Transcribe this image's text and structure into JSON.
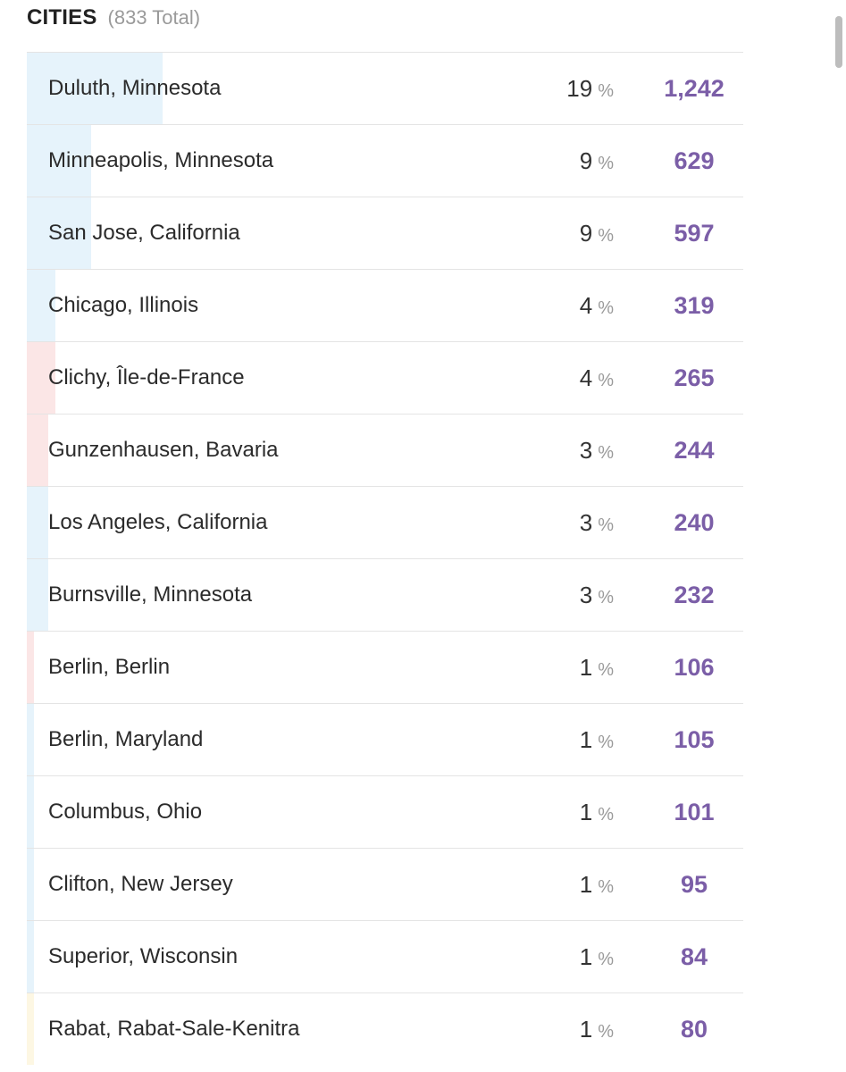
{
  "header": {
    "title": "CITIES",
    "total": "(833 Total)"
  },
  "colors": {
    "count_text": "#7b5ea7",
    "bar_blue": "#e6f3fb",
    "bar_red": "#fbe6e6",
    "bar_yellow": "#fdf7e3"
  },
  "rows": [
    {
      "city": "Duluth, Minnesota",
      "pct": "19",
      "pct_sign": "%",
      "count": "1,242",
      "share": 0.19,
      "bar_color": "#e6f3fb"
    },
    {
      "city": "Minneapolis, Minnesota",
      "pct": "9",
      "pct_sign": "%",
      "count": "629",
      "share": 0.09,
      "bar_color": "#e6f3fb"
    },
    {
      "city": "San Jose, California",
      "pct": "9",
      "pct_sign": "%",
      "count": "597",
      "share": 0.09,
      "bar_color": "#e6f3fb"
    },
    {
      "city": "Chicago, Illinois",
      "pct": "4",
      "pct_sign": "%",
      "count": "319",
      "share": 0.04,
      "bar_color": "#e6f3fb"
    },
    {
      "city": "Clichy, Île-de-France",
      "pct": "4",
      "pct_sign": "%",
      "count": "265",
      "share": 0.04,
      "bar_color": "#fbe6e6"
    },
    {
      "city": "Gunzenhausen, Bavaria",
      "pct": "3",
      "pct_sign": "%",
      "count": "244",
      "share": 0.03,
      "bar_color": "#fbe6e6"
    },
    {
      "city": "Los Angeles, California",
      "pct": "3",
      "pct_sign": "%",
      "count": "240",
      "share": 0.03,
      "bar_color": "#e6f3fb"
    },
    {
      "city": "Burnsville, Minnesota",
      "pct": "3",
      "pct_sign": "%",
      "count": "232",
      "share": 0.03,
      "bar_color": "#e6f3fb"
    },
    {
      "city": "Berlin, Berlin",
      "pct": "1",
      "pct_sign": "%",
      "count": "106",
      "share": 0.01,
      "bar_color": "#fbe6e6"
    },
    {
      "city": "Berlin, Maryland",
      "pct": "1",
      "pct_sign": "%",
      "count": "105",
      "share": 0.01,
      "bar_color": "#e6f3fb"
    },
    {
      "city": "Columbus, Ohio",
      "pct": "1",
      "pct_sign": "%",
      "count": "101",
      "share": 0.01,
      "bar_color": "#e6f3fb"
    },
    {
      "city": "Clifton, New Jersey",
      "pct": "1",
      "pct_sign": "%",
      "count": "95",
      "share": 0.01,
      "bar_color": "#e6f3fb"
    },
    {
      "city": "Superior, Wisconsin",
      "pct": "1",
      "pct_sign": "%",
      "count": "84",
      "share": 0.01,
      "bar_color": "#e6f3fb"
    },
    {
      "city": "Rabat, Rabat-Sale-Kenitra",
      "pct": "1",
      "pct_sign": "%",
      "count": "80",
      "share": 0.01,
      "bar_color": "#fdf7e3"
    }
  ]
}
